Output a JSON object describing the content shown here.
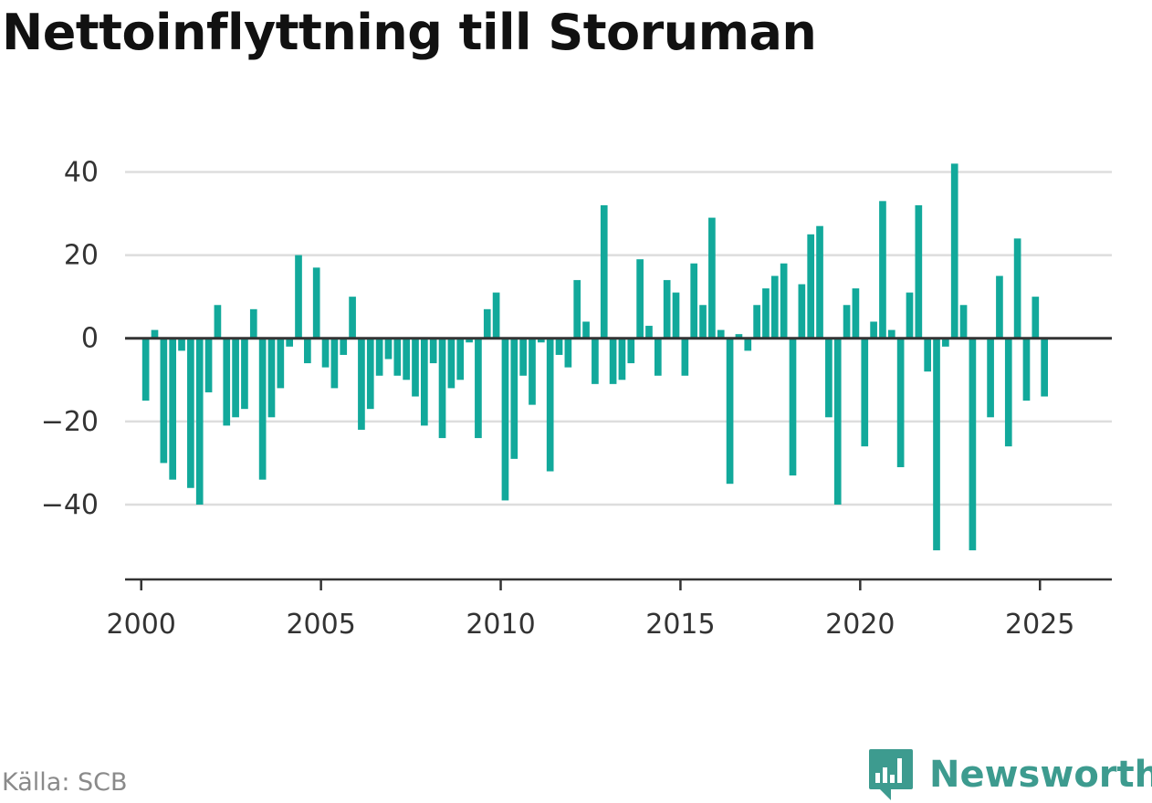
{
  "title": "Nettoinflyttning till Storuman",
  "source": "Källa: SCB",
  "brand": {
    "name": "Newsworthy",
    "icon": "newsworthy-logo-icon"
  },
  "colors": {
    "bar": "#12a99b",
    "brand": "#3d9b8f",
    "grid": "#dddddd",
    "zero": "#333333",
    "axis": "#333333"
  },
  "chart_data": {
    "type": "bar",
    "title": "Nettoinflyttning till Storuman",
    "xlabel": "",
    "ylabel": "",
    "ylim": [
      -58,
      48
    ],
    "xlim": [
      1999.55,
      2027.0
    ],
    "yticks": [
      40,
      20,
      0,
      -20,
      -40
    ],
    "ytick_labels": [
      "40",
      "20",
      "0",
      "−20",
      "−40"
    ],
    "xticks": [
      2000,
      2005,
      2010,
      2015,
      2020,
      2025
    ],
    "xtick_labels": [
      "2000",
      "2005",
      "2010",
      "2015",
      "2020",
      "2025"
    ],
    "grid": true,
    "x_start": 2000.125,
    "x_step": 0.25,
    "values": [
      -15,
      2,
      -30,
      -34,
      -3,
      -36,
      -40,
      -13,
      8,
      -21,
      -19,
      -17,
      7,
      -34,
      -19,
      -12,
      -2,
      20,
      -6,
      17,
      -7,
      -12,
      -4,
      10,
      -22,
      -17,
      -9,
      -5,
      -9,
      -10,
      -14,
      -21,
      -6,
      -24,
      -12,
      -10,
      -1,
      -24,
      7,
      11,
      -39,
      -29,
      -9,
      -16,
      -1,
      -32,
      -4,
      -7,
      14,
      4,
      -11,
      32,
      -11,
      -10,
      -6,
      19,
      3,
      -9,
      14,
      11,
      -9,
      18,
      8,
      29,
      2,
      -35,
      1,
      -3,
      8,
      12,
      15,
      18,
      -33,
      13,
      25,
      27,
      -19,
      -40,
      8,
      12,
      -26,
      4,
      33,
      2,
      -31,
      11,
      32,
      -8,
      -51,
      -2,
      42,
      8,
      -51,
      0,
      -19,
      15,
      -26,
      24,
      -15,
      10,
      -14
    ]
  }
}
